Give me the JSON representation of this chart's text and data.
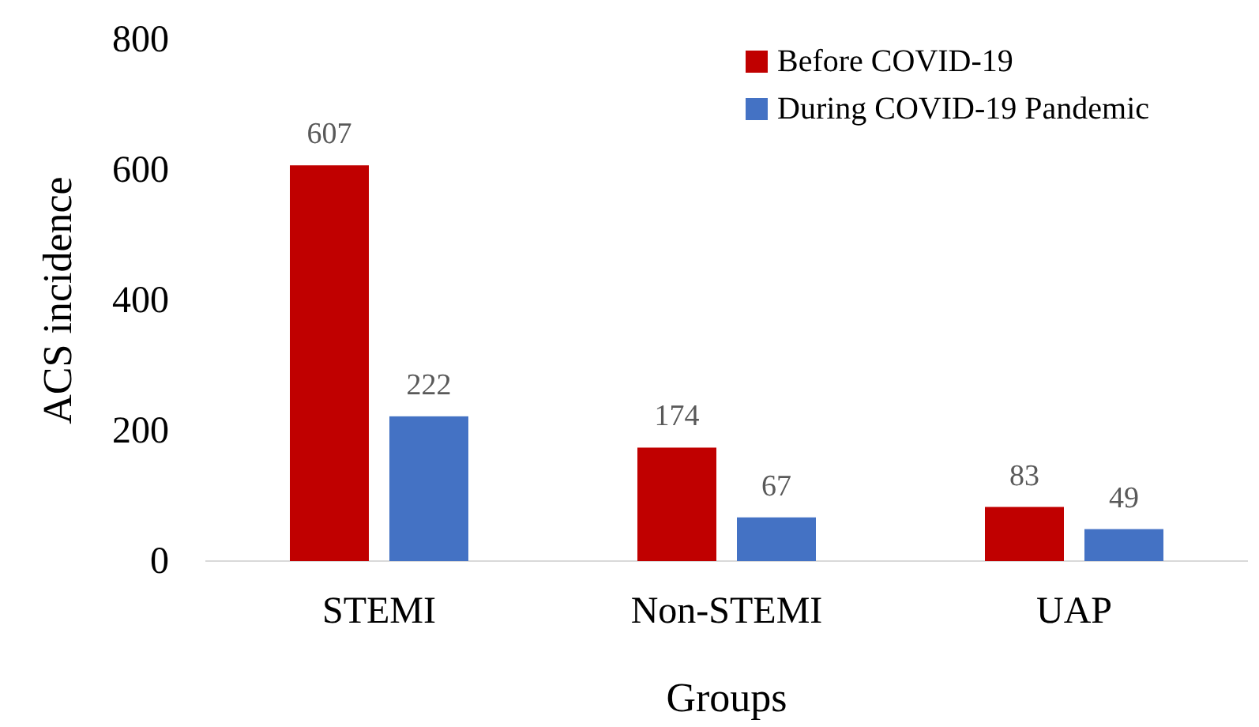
{
  "chart_data": {
    "type": "bar",
    "xlabel": "Groups",
    "ylabel": "ACS incidence",
    "categories": [
      "STEMI",
      "Non-STEMI",
      "UAP"
    ],
    "series": [
      {
        "name": "Before COVID-19",
        "color": "#c00000",
        "values": [
          607,
          174,
          83
        ]
      },
      {
        "name": "During COVID-19 Pandemic",
        "color": "#4472c4",
        "values": [
          222,
          67,
          49
        ]
      }
    ],
    "ylim": [
      0,
      800
    ],
    "yticks": [
      0,
      200,
      400,
      600,
      800
    ],
    "grid": false,
    "legend": "top right",
    "data_labels": true
  }
}
